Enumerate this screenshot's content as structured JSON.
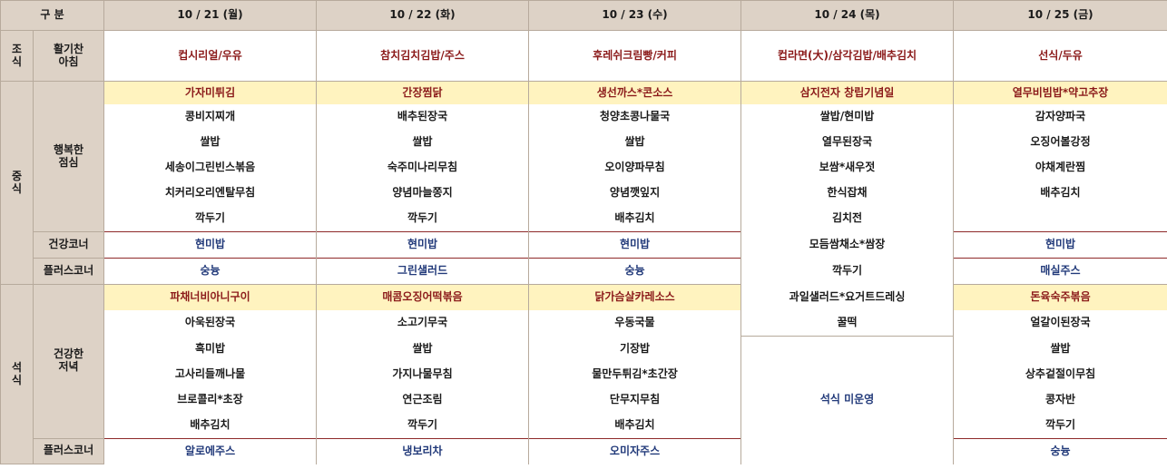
{
  "header": {
    "gubun": "구 분",
    "days": [
      "10 / 21 (월)",
      "10 / 22 (화)",
      "10 / 23 (수)",
      "10 / 24 (목)",
      "10 / 25 (금)"
    ]
  },
  "breakfast": {
    "meal": "조\n식",
    "label": "활기찬\n아침",
    "menus": [
      "컵시리얼/우유",
      "참치김치김밥/주스",
      "후레쉬크림빵/커피",
      "컵라면(大)/삼각김밥/배추김치",
      "선식/두유"
    ]
  },
  "lunch": {
    "meal": "중\n식",
    "label": "행복한\n점심",
    "specials": [
      "가자미튀김",
      "간장찜닭",
      "생선까스*콘소스",
      "삼지전자 창립기념일",
      "열무비빔밥*약고추장"
    ],
    "items": [
      [
        "콩비지찌개",
        "쌀밥",
        "세송이그린빈스볶음",
        "치커리오리엔탈무침",
        "깍두기"
      ],
      [
        "배추된장국",
        "쌀밥",
        "숙주미나리무침",
        "양념마늘쫑지",
        "깍두기"
      ],
      [
        "청양초콩나물국",
        "쌀밥",
        "오이양파무침",
        "양념깻잎지",
        "배추김치"
      ],
      [
        "쌀밥/현미밥",
        "열무된장국",
        "보쌈*새우젓",
        "한식잡채",
        "김치전",
        "모듬쌈채소*쌈장",
        "깍두기",
        "과일샐러드*요거트드레싱",
        "꿀떡"
      ],
      [
        "감자양파국",
        "오징어볼강정",
        "야채계란찜",
        "배추김치"
      ]
    ],
    "health_label": "건강코너",
    "health": [
      "현미밥",
      "현미밥",
      "현미밥",
      "현미밥"
    ],
    "plus_label": "플러스코너",
    "plus": [
      "숭늉",
      "그린샐러드",
      "숭늉",
      "매실주스"
    ]
  },
  "dinner": {
    "meal": "석\n식",
    "label": "건강한\n저녁",
    "specials": [
      "파채너비아니구이",
      "매콤오징어떡볶음",
      "닭가슴살카레소스",
      "돈육숙주볶음"
    ],
    "items": [
      [
        "아욱된장국",
        "흑미밥",
        "고사리들깨나물",
        "브로콜리*초장",
        "배추김치"
      ],
      [
        "소고기무국",
        "쌀밥",
        "가지나물무침",
        "연근조림",
        "깍두기"
      ],
      [
        "우동국물",
        "기장밥",
        "물만두튀김*초간장",
        "단무지무침",
        "배추김치"
      ],
      [
        "얼갈이된장국",
        "쌀밥",
        "상추겉절이무침",
        "콩자반",
        "깍두기"
      ]
    ],
    "notice": "석식 미운영",
    "plus_label": "플러스코너",
    "plus": [
      "알로에주스",
      "냉보리차",
      "오미자주스",
      "숭늉"
    ]
  }
}
